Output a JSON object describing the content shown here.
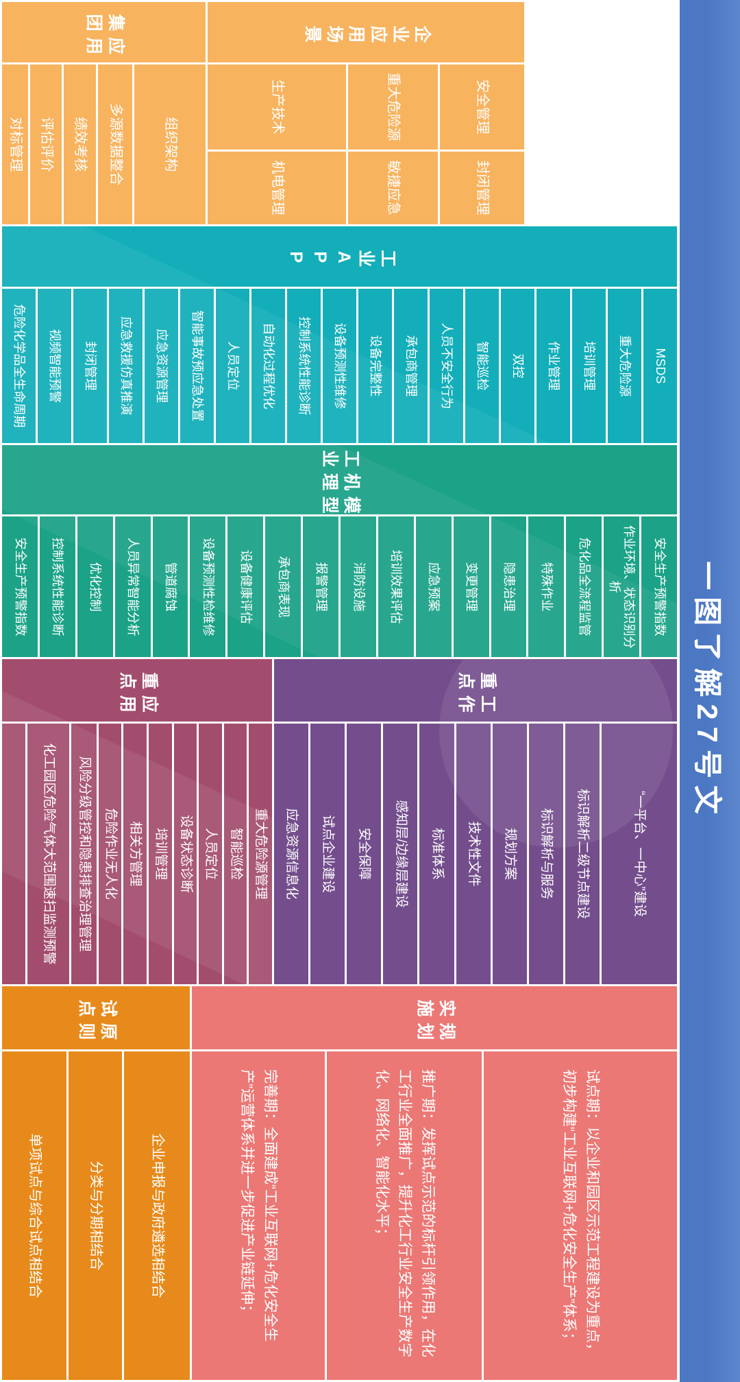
{
  "banner": {
    "title": "一图了解27号文"
  },
  "colors": {
    "blue": "#4b77c3",
    "blue-light": "#5d87ce",
    "orange": "#f8b35f",
    "teal": "#13aeb9",
    "green": "#1ba287",
    "purple": "#744e8c",
    "maroon": "#a34d6e",
    "pink": "#eb7875",
    "orange2": "#e78a1b"
  },
  "sections": {
    "enterprise_scenarios": {
      "header": "企业应用场景",
      "rows": [
        [
          "安全管理",
          "封闭管理"
        ],
        [
          "重大危险源",
          "敏捷应急"
        ],
        [
          "生产技术",
          "机电管理"
        ]
      ]
    },
    "group_application": {
      "header": "集团\n应用",
      "items": [
        "组织架构",
        "多源数据整合",
        "绩效考核",
        "评估评价",
        "对标管理"
      ]
    },
    "industrial_app": {
      "header": "工业APP",
      "items": [
        "MSDS",
        "重大危险源",
        "培训管理",
        "作业管理",
        "双控",
        "智能巡检",
        "人员不安全行为",
        "承包商管理",
        "设备完整性",
        "设备预测性维修",
        "控制系统性能诊断",
        "自动化过程优化",
        "人员定位",
        "智能事故预应急处置",
        "应急资源管理",
        "应急救援仿真推演",
        "封闭管理",
        "视频智能预警",
        "危险化学品全生命周期"
      ]
    },
    "industrial_model": {
      "header": "工业\n机理\n模型",
      "items": [
        "安全生产预警指数",
        "作业环境、状态识别分析",
        "危化品全流程监管",
        "特殊作业",
        "隐患治理",
        "变更管理",
        "应急预案",
        "培训效果评估",
        "消防设施",
        "报警管理",
        "承包商表现",
        "设备健康评估",
        "设备预测性检维修",
        "管道腐蚀",
        "人员异常智能分析",
        "优化控制",
        "控制系统性能诊断",
        "安全生产预警指数"
      ]
    },
    "key_work": {
      "header": "重点\n工作",
      "items": [
        "“一平台、一中心”建设",
        "标识解析二级节点建设",
        "标识解析与服务",
        "规划方案",
        "技术性文件",
        "标准体系",
        "感知层/边缘层建设",
        "安全保障",
        "试点企业建设",
        "应急资源信息化"
      ]
    },
    "key_application": {
      "header": "重点\n应用",
      "items": [
        "重大危险源管理",
        "智能巡检",
        "人员定位",
        "设备状态诊断",
        "培训管理",
        "相关方管理",
        "危险作业无人化",
        "风险分级管控和隐患排查治理管理",
        "化工园区危险气体大范围速扫监测预警",
        ""
      ]
    },
    "implementation_plan": {
      "header": "实施\n规划",
      "items": [
        "试点期：以企业和园区示范工程建设为重点，初步构建“工业互联网+危化安全生产”体系；",
        "推广期：发挥试点示范的标杆引领作用，在化工行业全面推广，提升化工行业安全生产数字化、网络化、智能化水平；",
        "完善期：全面建成“工业互联网+危化安全生产”运营体系并进一步促进产业链延伸；"
      ]
    },
    "pilot_principles": {
      "header": "试点\n原则",
      "items": [
        "企业申报与政府遴选相结合",
        "分类与分期相结合",
        "单项试点与综合试点相结合"
      ]
    }
  }
}
